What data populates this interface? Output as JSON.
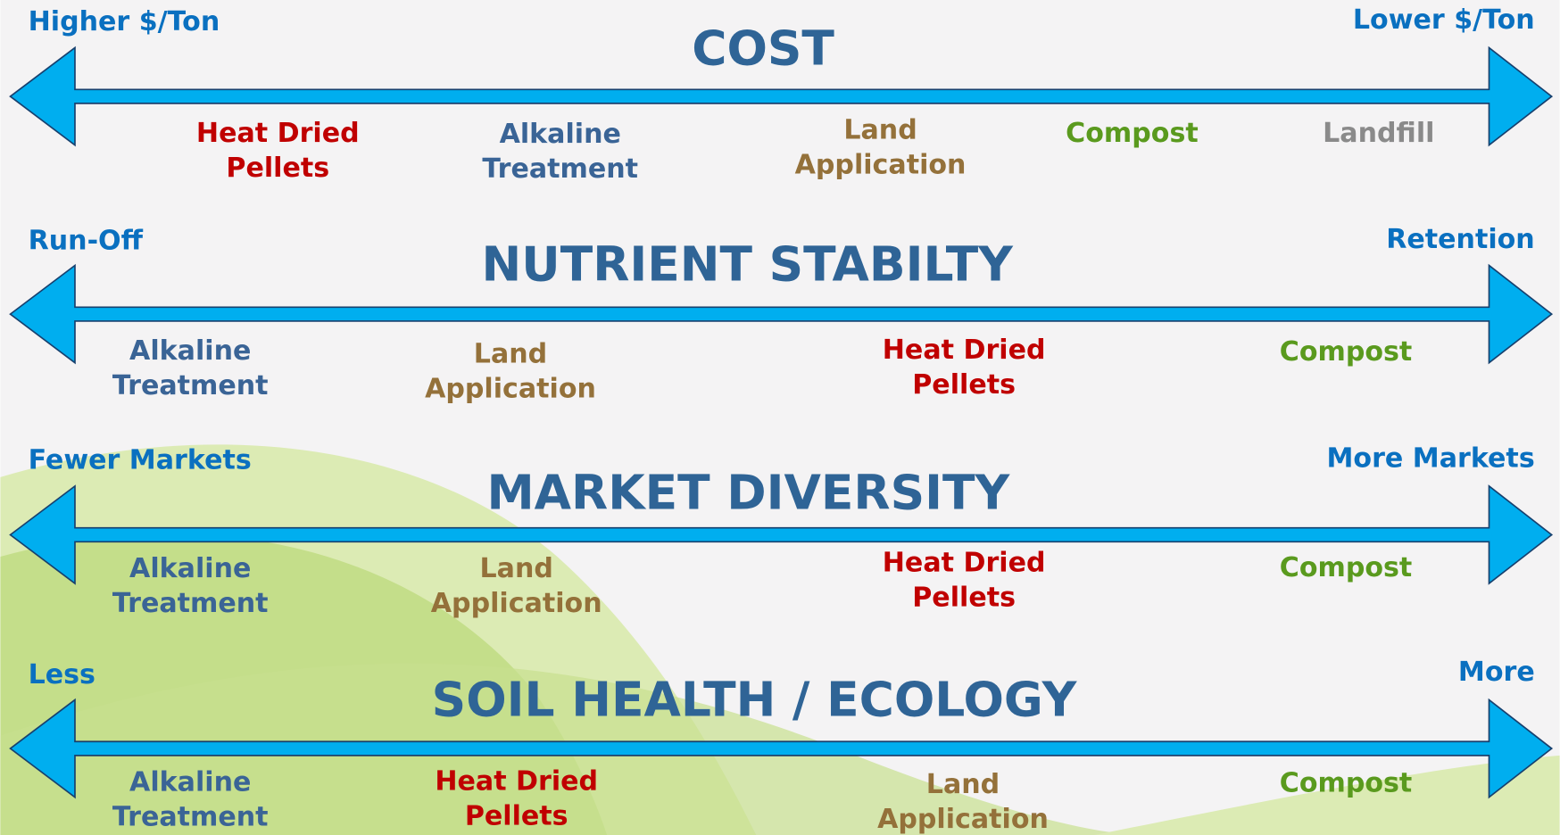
{
  "rows": [
    {
      "title": "COST",
      "left": "Higher $/Ton",
      "right": "Lower $/Ton",
      "items": [
        {
          "lines": [
            "Heat Dried",
            "Pellets"
          ],
          "color": "#c00000"
        },
        {
          "lines": [
            "Alkaline",
            "Treatment"
          ],
          "color": "#3a6496"
        },
        {
          "lines": [
            "Land",
            "Application"
          ],
          "color": "#94713a"
        },
        {
          "lines": [
            "Compost"
          ],
          "color": "#5a9a1e"
        },
        {
          "lines": [
            "Landfill"
          ],
          "color": "#8a8a8a"
        }
      ]
    },
    {
      "title": "NUTRIENT STABILTY",
      "left": "Run-Off",
      "right": "Retention",
      "items": [
        {
          "lines": [
            "Alkaline",
            "Treatment"
          ],
          "color": "#3a6496"
        },
        {
          "lines": [
            "Land",
            "Application"
          ],
          "color": "#94713a"
        },
        {
          "lines": [
            "Heat Dried",
            "Pellets"
          ],
          "color": "#c00000"
        },
        {
          "lines": [
            "Compost"
          ],
          "color": "#5a9a1e"
        }
      ]
    },
    {
      "title": "MARKET DIVERSITY",
      "left": "Fewer Markets",
      "right": "More Markets",
      "items": [
        {
          "lines": [
            "Alkaline",
            "Treatment"
          ],
          "color": "#3a6496"
        },
        {
          "lines": [
            "Land",
            "Application"
          ],
          "color": "#94713a"
        },
        {
          "lines": [
            "Heat Dried",
            "Pellets"
          ],
          "color": "#c00000"
        },
        {
          "lines": [
            "Compost"
          ],
          "color": "#5a9a1e"
        }
      ]
    },
    {
      "title": "SOIL HEALTH / ECOLOGY",
      "left": "Less",
      "right": "More",
      "items": [
        {
          "lines": [
            "Alkaline",
            "Treatment"
          ],
          "color": "#3a6496"
        },
        {
          "lines": [
            "Heat Dried",
            "Pellets"
          ],
          "color": "#c00000"
        },
        {
          "lines": [
            "Land",
            "Application"
          ],
          "color": "#94713a"
        },
        {
          "lines": [
            "Compost"
          ],
          "color": "#5a9a1e"
        }
      ]
    }
  ]
}
